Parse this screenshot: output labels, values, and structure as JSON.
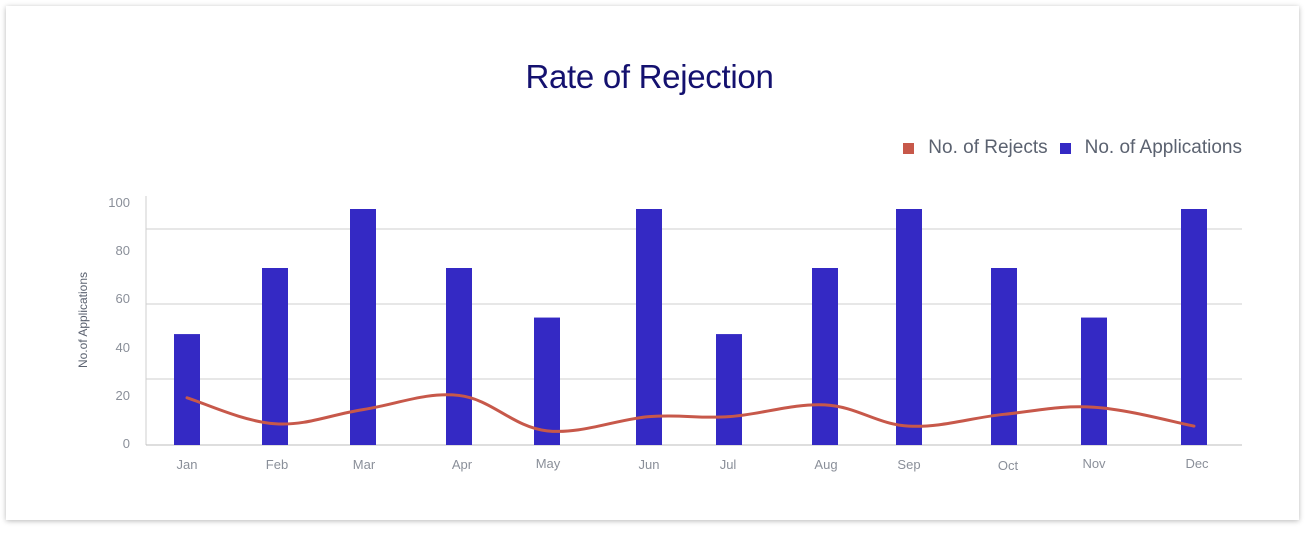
{
  "chart_data": {
    "type": "bar",
    "title": "Rate of Rejection",
    "xlabel": "",
    "ylabel": "No.of Applications",
    "y_ticks": [
      "0",
      "20",
      "40",
      "60",
      "80",
      "100"
    ],
    "ylim": [
      0,
      100
    ],
    "grid": true,
    "legend_position": "top-right",
    "categories": [
      "Jan",
      "Feb",
      "Mar",
      "Apr",
      "May",
      "Jun",
      "Jul",
      "Aug",
      "Sep",
      "Oct",
      "Nov",
      "Dec"
    ],
    "series": [
      {
        "name": "No. of Applications",
        "type": "bar",
        "color": "#3429c4",
        "values": [
          47,
          75,
          100,
          75,
          54,
          100,
          47,
          75,
          100,
          75,
          54,
          100
        ]
      },
      {
        "name": "No. of Rejects",
        "type": "line",
        "color": "#c7584a",
        "values": [
          20,
          9,
          15,
          21,
          6,
          12,
          12,
          17,
          8,
          13,
          16,
          8
        ]
      }
    ]
  }
}
